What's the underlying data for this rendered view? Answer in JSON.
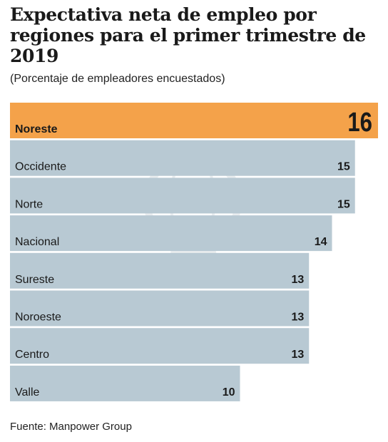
{
  "title": "Expectativa neta de empleo por regiones para el primer trimestre de 2019",
  "subtitle": "(Porcentaje de empleadores encuestados)",
  "source": "Fuente: Manpower Group",
  "colors": {
    "highlight": "#f4a24a",
    "bar": "#b8c9d3",
    "text": "#1a1a1a",
    "watermark": "#9fb0ba"
  },
  "chart_data": {
    "type": "bar",
    "orientation": "horizontal",
    "categories": [
      "Noreste",
      "Occidente",
      "Norte",
      "Nacional",
      "Sureste",
      "Noroeste",
      "Centro",
      "Valle"
    ],
    "values": [
      16,
      15,
      15,
      14,
      13,
      13,
      13,
      10
    ],
    "highlight_category": "Noreste",
    "xlim": [
      0,
      16
    ],
    "grid": false,
    "legend": "none"
  }
}
